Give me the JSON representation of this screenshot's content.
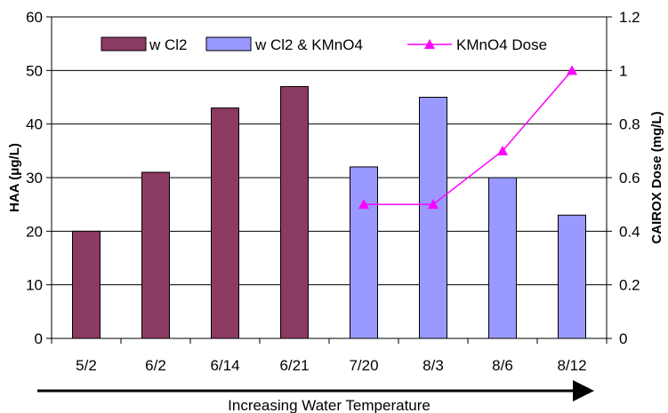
{
  "chart_data": {
    "type": "bar",
    "categories": [
      "5/2",
      "6/2",
      "6/14",
      "6/21",
      "7/20",
      "8/3",
      "8/6",
      "8/12"
    ],
    "series": [
      {
        "name": "w Cl2",
        "type": "bar",
        "axis": "left",
        "color": "#8b3a62",
        "values": [
          20,
          31,
          43,
          47,
          null,
          null,
          null,
          null
        ]
      },
      {
        "name": "w Cl2 & KMnO4",
        "type": "bar",
        "axis": "left",
        "color": "#9999ff",
        "values": [
          null,
          null,
          null,
          null,
          32,
          45,
          30,
          23
        ]
      },
      {
        "name": "KMnO4 Dose",
        "type": "line",
        "axis": "right",
        "color": "#ff00ff",
        "marker": "triangle",
        "values": [
          null,
          null,
          null,
          null,
          0.5,
          0.5,
          0.7,
          1.0
        ]
      }
    ],
    "ylabel": "HAA (μg/L)",
    "y2label": "CAIROX Dose (mg/L)",
    "xlabel": "Increasing Water Temperature",
    "ylim": [
      0,
      60
    ],
    "y2lim": [
      0,
      1.2
    ],
    "yticks": [
      "0",
      "10",
      "20",
      "30",
      "40",
      "50",
      "60"
    ],
    "y2ticks": [
      "0",
      "0.2",
      "0.4",
      "0.6",
      "0.8",
      "1",
      "1.2"
    ],
    "grid": true,
    "legend": "top-inside"
  }
}
